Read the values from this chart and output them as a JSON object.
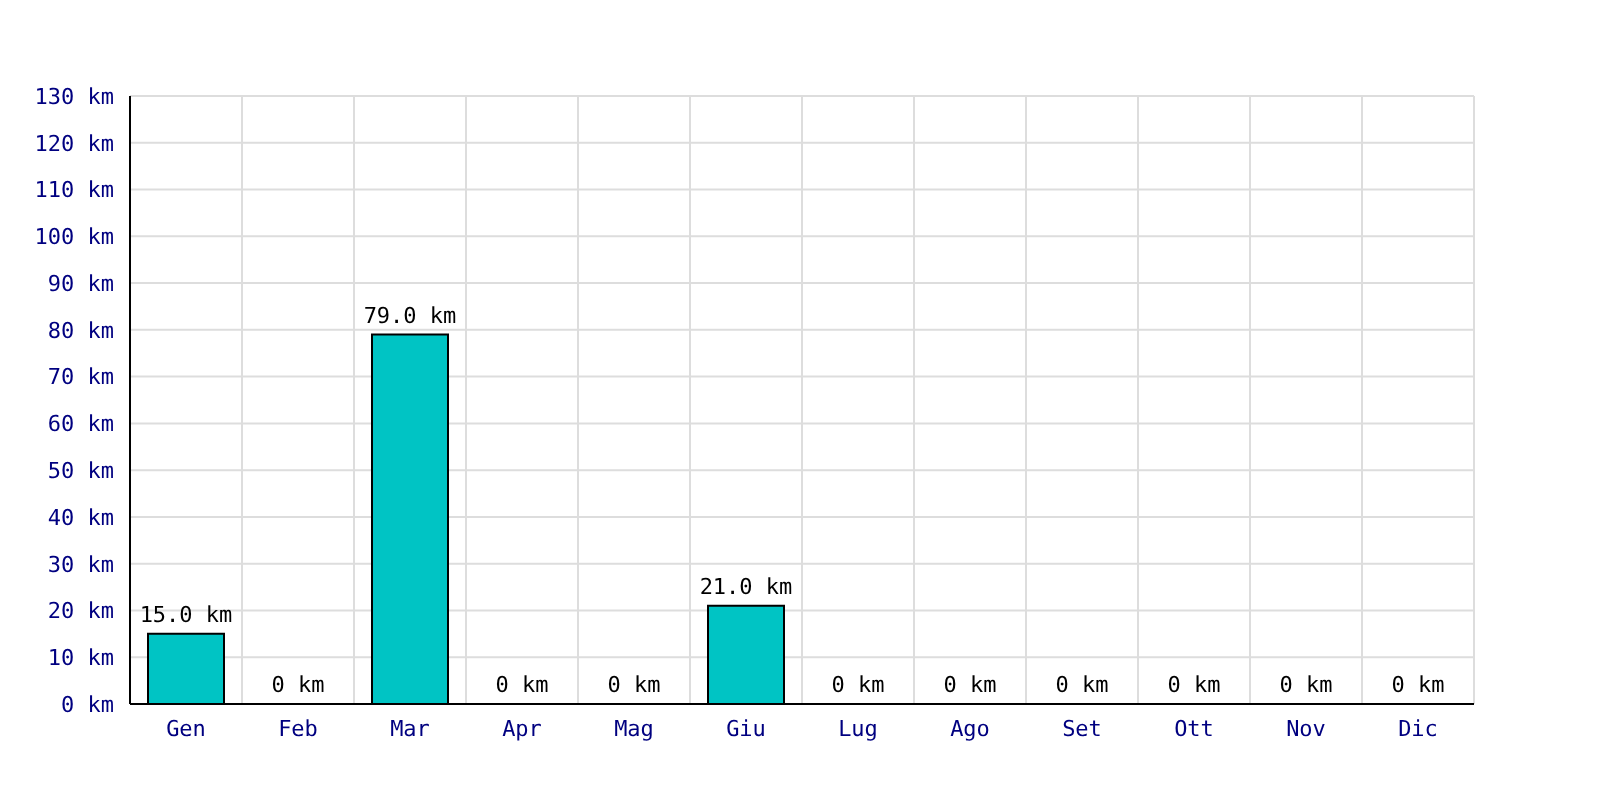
{
  "chart_data": {
    "type": "bar",
    "categories": [
      "Gen",
      "Feb",
      "Mar",
      "Apr",
      "Mag",
      "Giu",
      "Lug",
      "Ago",
      "Set",
      "Ott",
      "Nov",
      "Dic"
    ],
    "values": [
      15,
      0,
      79,
      0,
      0,
      21,
      0,
      0,
      0,
      0,
      0,
      0
    ],
    "value_labels": [
      "15.0 km",
      "0 km",
      "79.0 km",
      "0 km",
      "0 km",
      "21.0 km",
      "0 km",
      "0 km",
      "0 km",
      "0 km",
      "0 km",
      "0 km"
    ],
    "color": "#00c4c4",
    "ylim": [
      0,
      130
    ],
    "yticks": [
      {
        "value": 0,
        "label": "0 km"
      },
      {
        "value": 10,
        "label": "10 km"
      },
      {
        "value": 20,
        "label": "20 km"
      },
      {
        "value": 30,
        "label": "30 km"
      },
      {
        "value": 40,
        "label": "40 km"
      },
      {
        "value": 50,
        "label": "50 km"
      },
      {
        "value": 60,
        "label": "60 km"
      },
      {
        "value": 70,
        "label": "70 km"
      },
      {
        "value": 80,
        "label": "80 km"
      },
      {
        "value": 90,
        "label": "90 km"
      },
      {
        "value": 100,
        "label": "100 km"
      },
      {
        "value": 110,
        "label": "110 km"
      },
      {
        "value": 120,
        "label": "120 km"
      },
      {
        "value": 130,
        "label": "130 km"
      }
    ],
    "grid": true
  }
}
